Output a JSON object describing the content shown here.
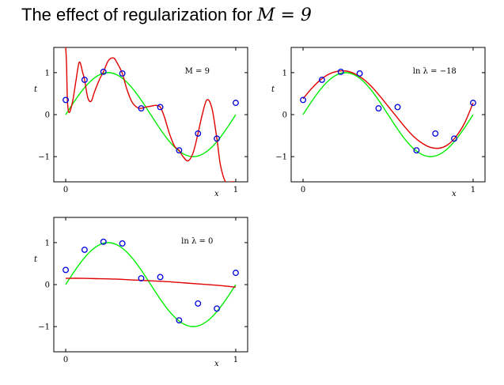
{
  "title": {
    "prefix": "The effect of regularization for ",
    "math": "M = 9"
  },
  "colors": {
    "true_curve": "#00ee00",
    "fit_curve": "#e00000",
    "points": "#0000dd"
  },
  "chart_data": [
    {
      "type": "line",
      "annotation": "M = 9",
      "xlabel": "x",
      "ylabel": "t",
      "xlim": [
        -0.07,
        1.07
      ],
      "ylim": [
        -1.6,
        1.6
      ],
      "xticks": [
        0,
        1
      ],
      "yticks": [
        -1,
        0,
        1
      ],
      "observations": {
        "x": [
          0.0,
          0.111,
          0.222,
          0.333,
          0.444,
          0.556,
          0.667,
          0.778,
          0.889,
          1.0
        ],
        "y": [
          0.35,
          0.83,
          1.02,
          0.98,
          0.15,
          0.18,
          -0.85,
          -0.45,
          -0.57,
          0.28
        ]
      },
      "series": [
        {
          "x": [
            0,
            0.05,
            0.1,
            0.15,
            0.2,
            0.25,
            0.3,
            0.35,
            0.4,
            0.45,
            0.5,
            0.55,
            0.6,
            0.65,
            0.7,
            0.75,
            0.8,
            0.85,
            0.9,
            0.95,
            1.0
          ],
          "y": [
            0,
            0.31,
            0.59,
            0.81,
            0.95,
            1.0,
            0.95,
            0.81,
            0.59,
            0.31,
            0,
            -0.31,
            -0.59,
            -0.81,
            -0.95,
            -1.0,
            -0.95,
            -0.81,
            -0.59,
            -0.31,
            0
          ]
        },
        {
          "x": [
            0,
            0.005,
            0.01,
            0.02,
            0.04,
            0.06,
            0.08,
            0.1,
            0.111,
            0.13,
            0.15,
            0.17,
            0.2,
            0.222,
            0.25,
            0.28,
            0.3,
            0.333,
            0.36,
            0.39,
            0.42,
            0.444,
            0.47,
            0.5,
            0.53,
            0.556,
            0.58,
            0.61,
            0.64,
            0.667,
            0.69,
            0.72,
            0.75,
            0.778,
            0.8,
            0.83,
            0.86,
            0.889,
            0.91,
            0.94,
            0.97,
            0.98,
            0.99
          ],
          "y": [
            1.6,
            1.2,
            0.35,
            0.05,
            0.3,
            0.8,
            1.25,
            1.0,
            0.83,
            0.4,
            0.32,
            0.55,
            0.85,
            1.02,
            1.28,
            1.35,
            1.25,
            0.98,
            0.6,
            0.3,
            0.17,
            0.15,
            0.18,
            0.2,
            0.22,
            0.18,
            -0.05,
            -0.45,
            -0.75,
            -0.85,
            -1.0,
            -1.1,
            -0.9,
            -0.45,
            -0.05,
            0.35,
            0.15,
            -0.57,
            -1.2,
            -1.6,
            -1.6,
            -1.6,
            -1.6
          ]
        }
      ]
    },
    {
      "type": "line",
      "annotation": "ln λ = −18",
      "xlabel": "x",
      "ylabel": "t",
      "xlim": [
        -0.07,
        1.07
      ],
      "ylim": [
        -1.6,
        1.6
      ],
      "xticks": [
        0,
        1
      ],
      "yticks": [
        -1,
        0,
        1
      ],
      "observations": {
        "x": [
          0.0,
          0.111,
          0.222,
          0.333,
          0.444,
          0.556,
          0.667,
          0.778,
          0.889,
          1.0
        ],
        "y": [
          0.35,
          0.83,
          1.02,
          0.98,
          0.15,
          0.18,
          -0.85,
          -0.45,
          -0.57,
          0.28
        ]
      },
      "series": [
        {
          "x": [
            0,
            0.05,
            0.1,
            0.15,
            0.2,
            0.25,
            0.3,
            0.35,
            0.4,
            0.45,
            0.5,
            0.55,
            0.6,
            0.65,
            0.7,
            0.75,
            0.8,
            0.85,
            0.9,
            0.95,
            1.0
          ],
          "y": [
            0,
            0.31,
            0.59,
            0.81,
            0.95,
            1.0,
            0.95,
            0.81,
            0.59,
            0.31,
            0,
            -0.31,
            -0.59,
            -0.81,
            -0.95,
            -1.0,
            -0.95,
            -0.81,
            -0.59,
            -0.31,
            0
          ]
        },
        {
          "x": [
            0,
            0.05,
            0.1,
            0.15,
            0.2,
            0.25,
            0.3,
            0.35,
            0.4,
            0.45,
            0.5,
            0.55,
            0.6,
            0.65,
            0.7,
            0.75,
            0.8,
            0.85,
            0.9,
            0.95,
            1.0
          ],
          "y": [
            0.38,
            0.62,
            0.82,
            0.96,
            1.03,
            1.04,
            0.98,
            0.86,
            0.68,
            0.45,
            0.2,
            -0.05,
            -0.3,
            -0.52,
            -0.68,
            -0.78,
            -0.8,
            -0.72,
            -0.52,
            -0.2,
            0.28
          ]
        }
      ]
    },
    {
      "type": "line",
      "annotation": "ln λ = 0",
      "xlabel": "x",
      "ylabel": "t",
      "xlim": [
        -0.07,
        1.07
      ],
      "ylim": [
        -1.6,
        1.6
      ],
      "xticks": [
        0,
        1
      ],
      "yticks": [
        -1,
        0,
        1
      ],
      "observations": {
        "x": [
          0.0,
          0.111,
          0.222,
          0.333,
          0.444,
          0.556,
          0.667,
          0.778,
          0.889,
          1.0
        ],
        "y": [
          0.35,
          0.83,
          1.02,
          0.98,
          0.15,
          0.18,
          -0.85,
          -0.45,
          -0.57,
          0.28
        ]
      },
      "series": [
        {
          "x": [
            0,
            0.05,
            0.1,
            0.15,
            0.2,
            0.25,
            0.3,
            0.35,
            0.4,
            0.45,
            0.5,
            0.55,
            0.6,
            0.65,
            0.7,
            0.75,
            0.8,
            0.85,
            0.9,
            0.95,
            1.0
          ],
          "y": [
            0,
            0.31,
            0.59,
            0.81,
            0.95,
            1.0,
            0.95,
            0.81,
            0.59,
            0.31,
            0,
            -0.31,
            -0.59,
            -0.81,
            -0.95,
            -1.0,
            -0.95,
            -0.81,
            -0.59,
            -0.31,
            0
          ]
        },
        {
          "x": [
            0,
            0.1,
            0.2,
            0.3,
            0.4,
            0.5,
            0.6,
            0.7,
            0.8,
            0.9,
            1.0
          ],
          "y": [
            0.15,
            0.15,
            0.14,
            0.13,
            0.11,
            0.09,
            0.07,
            0.04,
            0.01,
            -0.02,
            -0.06
          ]
        }
      ]
    }
  ]
}
